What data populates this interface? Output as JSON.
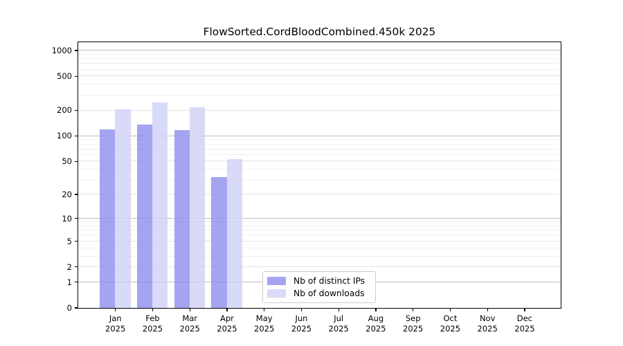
{
  "chart_data": {
    "type": "bar",
    "title": "FlowSorted.CordBloodCombined.450k 2025",
    "year_label": "2025",
    "months": [
      "Jan",
      "Feb",
      "Mar",
      "Apr",
      "May",
      "Jun",
      "Jul",
      "Aug",
      "Sep",
      "Oct",
      "Nov",
      "Dec"
    ],
    "series": [
      {
        "name": "Nb of distinct IPs",
        "color": "#8d8dec",
        "fill_alpha": 0.8,
        "values": [
          119,
          135,
          117,
          32,
          0,
          0,
          0,
          0,
          0,
          0,
          0,
          0
        ]
      },
      {
        "name": "Nb of downloads",
        "color": "#d0d0f6",
        "fill_alpha": 0.8,
        "values": [
          205,
          245,
          214,
          53,
          0,
          0,
          0,
          0,
          0,
          0,
          0,
          0
        ]
      }
    ],
    "y_axis": {
      "scale": "log10(value+1)",
      "tick_values": [
        0,
        1,
        2,
        5,
        10,
        20,
        50,
        100,
        200,
        500,
        1000
      ],
      "decade_values": [
        1,
        10,
        100,
        1000
      ],
      "range_top_value": 1250
    },
    "xlabel": "",
    "ylabel": "",
    "grid": true,
    "legend_position": "lower-center"
  }
}
